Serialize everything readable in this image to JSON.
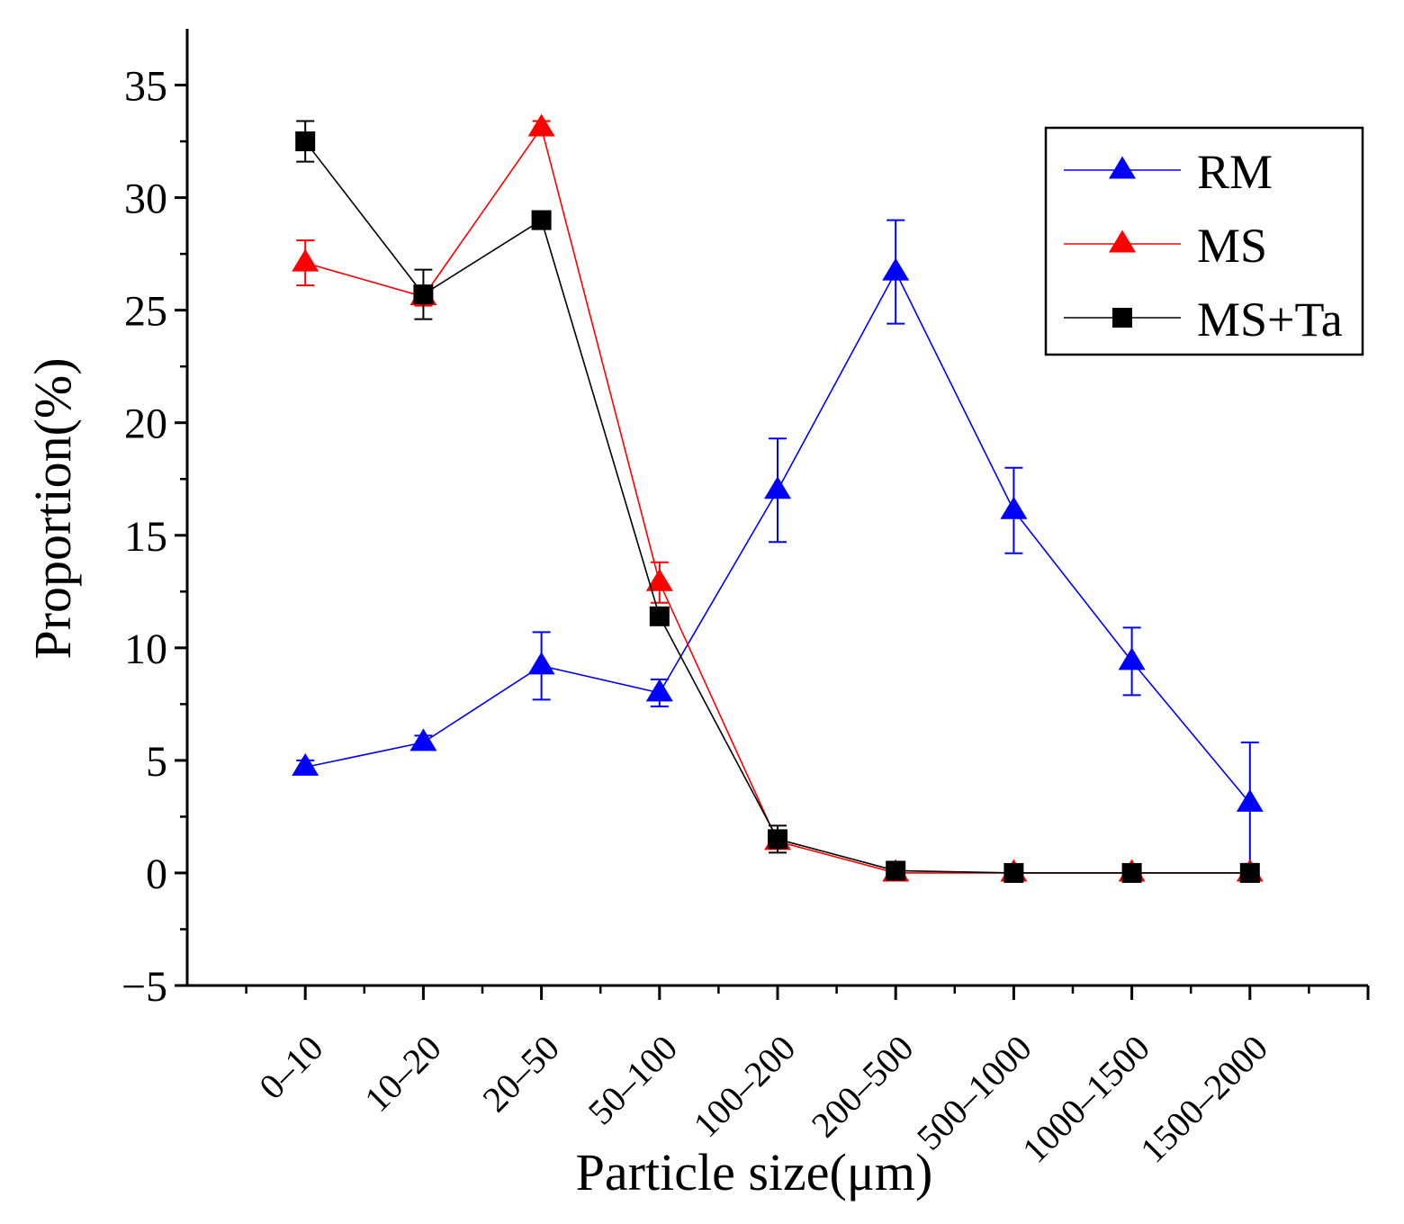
{
  "chart_data": {
    "type": "line",
    "title": "",
    "xlabel": "Particle size(μm)",
    "ylabel": "Proportion(%)",
    "ylim": [
      -5,
      37.5
    ],
    "yticks": [
      -5,
      0,
      5,
      10,
      15,
      20,
      25,
      30,
      35
    ],
    "ytick_labels": [
      "−5",
      "0",
      "5",
      "10",
      "15",
      "20",
      "25",
      "30",
      "35"
    ],
    "categories": [
      "0–10",
      "10–20",
      "20–50",
      "50–100",
      "100–200",
      "200–500",
      "500–1000",
      "1000–1500",
      "1500–2000"
    ],
    "grid": false,
    "legend_position": "top-right",
    "series": [
      {
        "name": "RM",
        "color": "#0000ff",
        "marker": "triangle",
        "values": [
          4.7,
          5.8,
          9.2,
          8.0,
          17.0,
          26.7,
          16.1,
          9.4,
          3.1
        ],
        "errors": [
          0.3,
          0.3,
          1.5,
          0.6,
          2.3,
          2.3,
          1.9,
          1.5,
          2.7
        ]
      },
      {
        "name": "MS",
        "color": "#ff0000",
        "marker": "triangle",
        "values": [
          27.1,
          25.6,
          33.1,
          12.9,
          1.4,
          0.0,
          0.0,
          0.0,
          0.0
        ],
        "errors": [
          1.0,
          0.4,
          0.3,
          0.9,
          0.3,
          0.1,
          0.1,
          0.1,
          0.1
        ]
      },
      {
        "name": "MS+Ta",
        "color": "#000000",
        "marker": "square",
        "values": [
          32.5,
          25.7,
          29.0,
          11.4,
          1.5,
          0.1,
          0.0,
          0.0,
          0.0
        ],
        "errors": [
          0.9,
          1.1,
          0.2,
          0.3,
          0.6,
          0.1,
          0.1,
          0.1,
          0.1
        ]
      }
    ]
  }
}
